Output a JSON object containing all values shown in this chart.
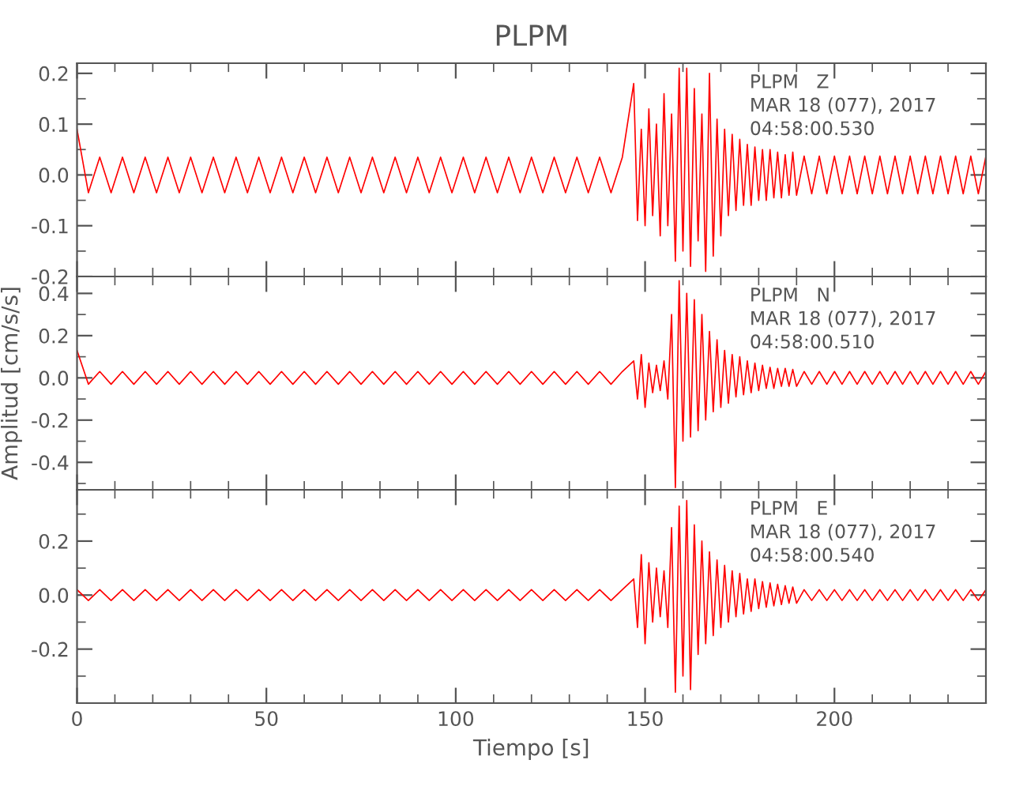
{
  "chart_data": [
    {
      "type": "line",
      "title": "PLPM",
      "tick_labels": "y",
      "annotations": [
        "PLPM   Z",
        "MAR 18 (077), 2017",
        "04:58:00.530"
      ],
      "x": [
        0,
        3,
        6,
        9,
        12,
        15,
        18,
        21,
        24,
        27,
        30,
        33,
        36,
        39,
        42,
        45,
        48,
        51,
        54,
        57,
        60,
        63,
        66,
        69,
        72,
        75,
        78,
        81,
        84,
        87,
        90,
        93,
        96,
        99,
        102,
        105,
        108,
        111,
        114,
        117,
        120,
        123,
        126,
        129,
        132,
        135,
        138,
        141,
        144,
        147,
        148,
        149,
        150,
        151,
        152,
        153,
        154,
        155,
        156,
        157,
        158,
        159,
        160,
        161,
        162,
        163,
        164,
        165,
        166,
        167,
        168,
        169,
        170,
        171,
        172,
        173,
        174,
        175,
        176,
        177,
        178,
        179,
        180,
        181,
        182,
        183,
        184,
        185,
        186,
        187,
        188,
        189,
        190,
        192,
        194,
        196,
        198,
        200,
        202,
        204,
        206,
        208,
        210,
        212,
        214,
        216,
        218,
        220,
        222,
        224,
        226,
        228,
        230,
        232,
        234,
        236,
        238,
        240
      ],
      "series": [
        {
          "color": "#ff0000",
          "values": [
            0.09,
            -0.035,
            0.035,
            -0.035,
            0.035,
            -0.035,
            0.035,
            -0.035,
            0.035,
            -0.035,
            0.035,
            -0.035,
            0.035,
            -0.035,
            0.035,
            -0.035,
            0.035,
            -0.035,
            0.035,
            -0.035,
            0.035,
            -0.035,
            0.035,
            -0.035,
            0.035,
            -0.035,
            0.035,
            -0.035,
            0.035,
            -0.035,
            0.035,
            -0.035,
            0.035,
            -0.035,
            0.035,
            -0.035,
            0.035,
            -0.035,
            0.035,
            -0.035,
            0.035,
            -0.035,
            0.035,
            -0.035,
            0.035,
            -0.035,
            0.035,
            -0.035,
            0.035,
            0.18,
            -0.09,
            0.09,
            -0.1,
            0.13,
            -0.08,
            0.1,
            -0.12,
            0.16,
            -0.1,
            0.12,
            -0.17,
            0.21,
            -0.15,
            0.21,
            -0.18,
            0.17,
            -0.13,
            0.12,
            -0.19,
            0.2,
            -0.16,
            0.11,
            -0.12,
            0.09,
            -0.08,
            0.08,
            -0.07,
            0.07,
            -0.06,
            0.06,
            -0.06,
            0.055,
            -0.05,
            0.05,
            -0.05,
            0.05,
            -0.045,
            0.045,
            -0.045,
            0.04,
            -0.04,
            0.045,
            -0.04,
            0.037,
            -0.037,
            0.037,
            -0.037,
            0.037,
            -0.037,
            0.037,
            -0.037,
            0.037,
            -0.037,
            0.037,
            -0.037,
            0.037,
            -0.037,
            0.037,
            -0.037,
            0.037,
            -0.037,
            0.037,
            -0.037,
            0.037,
            -0.037,
            0.037,
            -0.037,
            0.037
          ]
        }
      ],
      "xlim": [
        0,
        240
      ],
      "xticks": [
        0,
        {
          "value": 10,
          "label": null
        },
        {
          "value": 20,
          "label": null
        },
        {
          "value": 30,
          "label": null
        },
        {
          "value": 40,
          "label": null
        },
        50,
        {
          "value": 60,
          "label": null
        },
        {
          "value": 70,
          "label": null
        },
        {
          "value": 80,
          "label": null
        },
        {
          "value": 90,
          "label": null
        },
        100,
        {
          "value": 110,
          "label": null
        },
        {
          "value": 120,
          "label": null
        },
        {
          "value": 130,
          "label": null
        },
        {
          "value": 140,
          "label": null
        },
        150,
        {
          "value": 160,
          "label": null
        },
        {
          "value": 170,
          "label": null
        },
        {
          "value": 180,
          "label": null
        },
        {
          "value": 190,
          "label": null
        },
        200,
        {
          "value": 210,
          "label": null
        },
        {
          "value": 220,
          "label": null
        },
        {
          "value": 230,
          "label": null
        }
      ],
      "ylim": [
        -0.2,
        0.22
      ],
      "yticks": [
        -0.2,
        {
          "value": -0.15,
          "label": null
        },
        -0.1,
        {
          "value": -0.05,
          "label": null
        },
        {
          "value": 0.0,
          "label": "0.0"
        },
        {
          "value": 0.05,
          "label": null
        },
        0.1,
        {
          "value": 0.15,
          "label": null
        },
        0.2
      ]
    },
    {
      "type": "line",
      "ylabel": "Amplitud [cm/s/s]",
      "tick_labels": "y",
      "annotations": [
        "PLPM   N",
        "MAR 18 (077), 2017",
        "04:58:00.510"
      ],
      "x": [
        0,
        3,
        6,
        9,
        12,
        15,
        18,
        21,
        24,
        27,
        30,
        33,
        36,
        39,
        42,
        45,
        48,
        51,
        54,
        57,
        60,
        63,
        66,
        69,
        72,
        75,
        78,
        81,
        84,
        87,
        90,
        93,
        96,
        99,
        102,
        105,
        108,
        111,
        114,
        117,
        120,
        123,
        126,
        129,
        132,
        135,
        138,
        141,
        144,
        147,
        148,
        149,
        150,
        151,
        152,
        153,
        154,
        155,
        156,
        157,
        158,
        159,
        160,
        161,
        162,
        163,
        164,
        165,
        166,
        167,
        168,
        169,
        170,
        171,
        172,
        173,
        174,
        175,
        176,
        177,
        178,
        179,
        180,
        181,
        182,
        183,
        184,
        185,
        186,
        187,
        188,
        189,
        190,
        192,
        194,
        196,
        198,
        200,
        202,
        204,
        206,
        208,
        210,
        212,
        214,
        216,
        218,
        220,
        222,
        224,
        226,
        228,
        230,
        232,
        234,
        236,
        238,
        240
      ],
      "series": [
        {
          "color": "#ff0000",
          "values": [
            0.13,
            -0.03,
            0.03,
            -0.03,
            0.03,
            -0.03,
            0.03,
            -0.03,
            0.03,
            -0.03,
            0.03,
            -0.03,
            0.03,
            -0.03,
            0.03,
            -0.03,
            0.03,
            -0.03,
            0.03,
            -0.03,
            0.03,
            -0.03,
            0.03,
            -0.03,
            0.03,
            -0.03,
            0.03,
            -0.03,
            0.03,
            -0.03,
            0.03,
            -0.03,
            0.03,
            -0.03,
            0.03,
            -0.03,
            0.03,
            -0.03,
            0.03,
            -0.03,
            0.03,
            -0.03,
            0.03,
            -0.03,
            0.03,
            -0.03,
            0.03,
            -0.03,
            0.03,
            0.08,
            -0.1,
            0.11,
            -0.14,
            0.07,
            -0.07,
            0.06,
            -0.06,
            0.08,
            -0.1,
            0.3,
            -0.52,
            0.46,
            -0.3,
            0.4,
            -0.28,
            0.37,
            -0.25,
            0.3,
            -0.2,
            0.22,
            -0.16,
            0.18,
            -0.14,
            0.13,
            -0.12,
            0.11,
            -0.09,
            0.1,
            -0.08,
            0.08,
            -0.07,
            0.07,
            -0.06,
            0.06,
            -0.05,
            0.05,
            -0.05,
            0.045,
            -0.04,
            0.045,
            -0.04,
            0.04,
            -0.04,
            0.03,
            -0.03,
            0.03,
            -0.03,
            0.03,
            -0.03,
            0.03,
            -0.03,
            0.03,
            -0.03,
            0.03,
            -0.03,
            0.03,
            -0.03,
            0.03,
            -0.03,
            0.03,
            -0.03,
            0.03,
            -0.03,
            0.03,
            -0.03,
            0.03,
            -0.03,
            0.03
          ]
        }
      ],
      "xlim": [
        0,
        240
      ],
      "xticks": [
        0,
        {
          "value": 10,
          "label": null
        },
        {
          "value": 20,
          "label": null
        },
        {
          "value": 30,
          "label": null
        },
        {
          "value": 40,
          "label": null
        },
        50,
        {
          "value": 60,
          "label": null
        },
        {
          "value": 70,
          "label": null
        },
        {
          "value": 80,
          "label": null
        },
        {
          "value": 90,
          "label": null
        },
        100,
        {
          "value": 110,
          "label": null
        },
        {
          "value": 120,
          "label": null
        },
        {
          "value": 130,
          "label": null
        },
        {
          "value": 140,
          "label": null
        },
        150,
        {
          "value": 160,
          "label": null
        },
        {
          "value": 170,
          "label": null
        },
        {
          "value": 180,
          "label": null
        },
        {
          "value": 190,
          "label": null
        },
        200,
        {
          "value": 210,
          "label": null
        },
        {
          "value": 220,
          "label": null
        },
        {
          "value": 230,
          "label": null
        }
      ],
      "ylim": [
        -0.53,
        0.48
      ],
      "yticks": [
        {
          "value": -0.5,
          "label": null
        },
        -0.4,
        {
          "value": -0.3,
          "label": null
        },
        -0.2,
        {
          "value": -0.1,
          "label": null
        },
        {
          "value": 0.0,
          "label": "0.0"
        },
        {
          "value": 0.1,
          "label": null
        },
        0.2,
        {
          "value": 0.3,
          "label": null
        },
        0.4
      ]
    },
    {
      "type": "line",
      "xlabel": "Tiempo [s]",
      "annotations": [
        "PLPM   E",
        "MAR 18 (077), 2017",
        "04:58:00.540"
      ],
      "x": [
        0,
        3,
        6,
        9,
        12,
        15,
        18,
        21,
        24,
        27,
        30,
        33,
        36,
        39,
        42,
        45,
        48,
        51,
        54,
        57,
        60,
        63,
        66,
        69,
        72,
        75,
        78,
        81,
        84,
        87,
        90,
        93,
        96,
        99,
        102,
        105,
        108,
        111,
        114,
        117,
        120,
        123,
        126,
        129,
        132,
        135,
        138,
        141,
        144,
        147,
        148,
        149,
        150,
        151,
        152,
        153,
        154,
        155,
        156,
        157,
        158,
        159,
        160,
        161,
        162,
        163,
        164,
        165,
        166,
        167,
        168,
        169,
        170,
        171,
        172,
        173,
        174,
        175,
        176,
        177,
        178,
        179,
        180,
        181,
        182,
        183,
        184,
        185,
        186,
        187,
        188,
        189,
        190,
        192,
        194,
        196,
        198,
        200,
        202,
        204,
        206,
        208,
        210,
        212,
        214,
        216,
        218,
        220,
        222,
        224,
        226,
        228,
        230,
        232,
        234,
        236,
        238,
        240
      ],
      "series": [
        {
          "color": "#ff0000",
          "values": [
            0.02,
            -0.02,
            0.02,
            -0.02,
            0.02,
            -0.02,
            0.02,
            -0.02,
            0.02,
            -0.02,
            0.02,
            -0.02,
            0.02,
            -0.02,
            0.02,
            -0.02,
            0.02,
            -0.02,
            0.02,
            -0.02,
            0.02,
            -0.02,
            0.02,
            -0.02,
            0.02,
            -0.02,
            0.02,
            -0.02,
            0.02,
            -0.02,
            0.02,
            -0.02,
            0.02,
            -0.02,
            0.02,
            -0.02,
            0.02,
            -0.02,
            0.02,
            -0.02,
            0.02,
            -0.02,
            0.02,
            -0.02,
            0.02,
            -0.02,
            0.02,
            -0.02,
            0.02,
            0.06,
            -0.12,
            0.15,
            -0.18,
            0.12,
            -0.1,
            0.1,
            -0.08,
            0.09,
            -0.12,
            0.25,
            -0.36,
            0.33,
            -0.3,
            0.35,
            -0.35,
            0.26,
            -0.22,
            0.2,
            -0.18,
            0.16,
            -0.15,
            0.13,
            -0.12,
            0.11,
            -0.1,
            0.09,
            -0.08,
            0.08,
            -0.07,
            0.06,
            -0.06,
            0.06,
            -0.05,
            0.05,
            -0.045,
            0.045,
            -0.04,
            0.04,
            -0.035,
            0.035,
            -0.03,
            0.03,
            -0.03,
            0.02,
            -0.02,
            0.02,
            -0.02,
            0.02,
            -0.02,
            0.02,
            -0.02,
            0.02,
            -0.02,
            0.02,
            -0.02,
            0.02,
            -0.02,
            0.02,
            -0.02,
            0.02,
            -0.02,
            0.02,
            -0.02,
            0.02,
            -0.02,
            0.02,
            -0.02,
            0.02
          ]
        }
      ],
      "xlim": [
        0,
        240
      ],
      "xticks": [
        0,
        {
          "value": 10,
          "label": null
        },
        {
          "value": 20,
          "label": null
        },
        {
          "value": 30,
          "label": null
        },
        {
          "value": 40,
          "label": null
        },
        50,
        {
          "value": 60,
          "label": null
        },
        {
          "value": 70,
          "label": null
        },
        {
          "value": 80,
          "label": null
        },
        {
          "value": 90,
          "label": null
        },
        100,
        {
          "value": 110,
          "label": null
        },
        {
          "value": 120,
          "label": null
        },
        {
          "value": 130,
          "label": null
        },
        {
          "value": 140,
          "label": null
        },
        150,
        {
          "value": 160,
          "label": null
        },
        {
          "value": 170,
          "label": null
        },
        {
          "value": 180,
          "label": null
        },
        {
          "value": 190,
          "label": null
        },
        200,
        {
          "value": 210,
          "label": null
        },
        {
          "value": 220,
          "label": null
        },
        {
          "value": 230,
          "label": null
        }
      ],
      "ylim": [
        -0.4,
        0.39
      ],
      "yticks": [
        {
          "value": -0.3,
          "label": null
        },
        -0.2,
        {
          "value": -0.1,
          "label": null
        },
        {
          "value": 0.0,
          "label": "0.0"
        },
        {
          "value": 0.1,
          "label": null
        },
        0.2,
        {
          "value": 0.3,
          "label": null
        }
      ]
    }
  ]
}
